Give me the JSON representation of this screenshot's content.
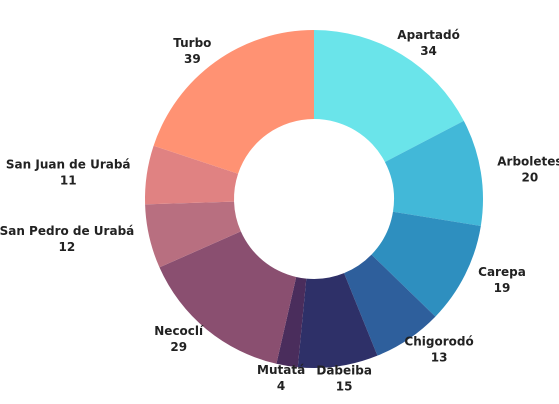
{
  "chart_data": {
    "type": "donut",
    "categories": [
      "Apartadó",
      "Arboletes",
      "Carepa",
      "Chigorodó",
      "Dabeiba",
      "Mutatá",
      "Necoclí",
      "San Pedro de Urabá",
      "San Juan de Urabá",
      "Turbo"
    ],
    "values": [
      34,
      20,
      19,
      13,
      15,
      4,
      29,
      12,
      11,
      39
    ],
    "colors": [
      "#6ae4ea",
      "#42b8d8",
      "#2e8fbf",
      "#2e5f9c",
      "#2e3068",
      "#4a2d5c",
      "#8a4f70",
      "#b86f80",
      "#e08282",
      "#ff9273"
    ]
  }
}
